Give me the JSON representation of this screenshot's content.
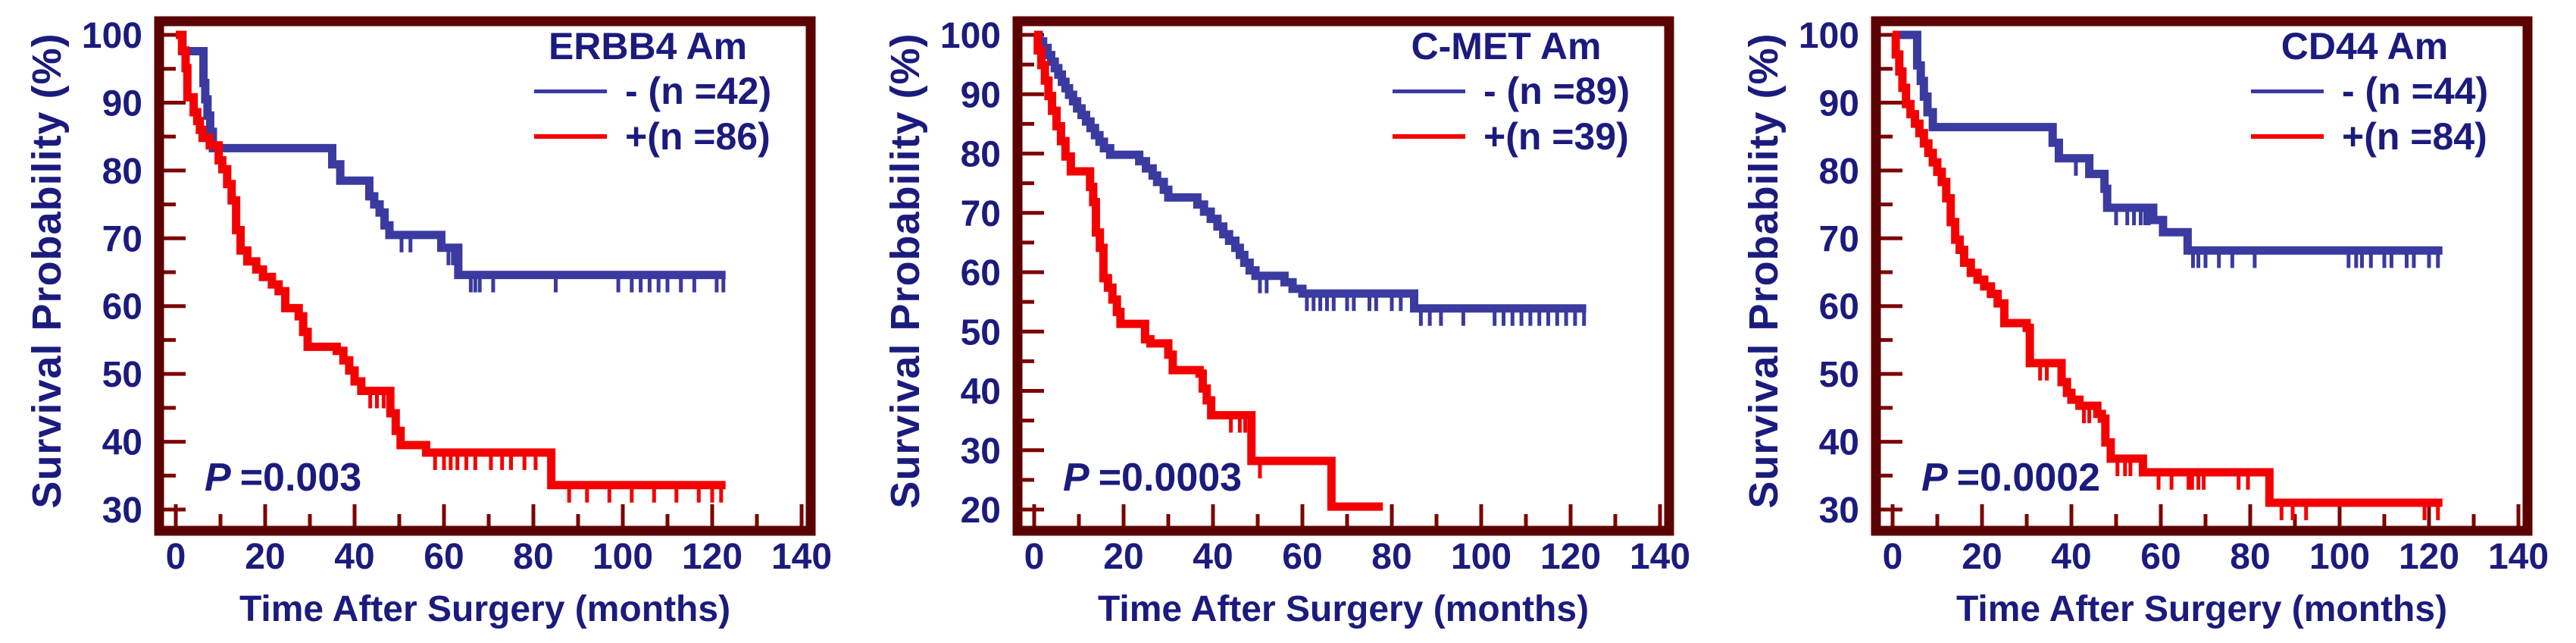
{
  "figure": {
    "x_label": "Time After Surgery (months)",
    "y_label": "Survival Probability (%)",
    "colors": {
      "negative_curve": "#3a3aa0",
      "positive_curve": "#f40000",
      "frame": "#5c0101",
      "tick": "#7d0404",
      "text": "#1b1b7e",
      "background": "#ffffff"
    }
  },
  "chart_data": [
    {
      "type": "line",
      "subtype": "kaplan-meier-step",
      "title": "ERBB4 Am",
      "p_symbol": "P",
      "p_value": "=0.003",
      "xlabel": "Time After Surgery (months)",
      "ylabel": "Survival Probability (%)",
      "xlim": [
        0,
        140
      ],
      "ylim": [
        30,
        100
      ],
      "x_ticks": [
        0,
        20,
        40,
        60,
        80,
        100,
        120,
        140
      ],
      "y_ticks": [
        30,
        40,
        50,
        60,
        70,
        80,
        90,
        100
      ],
      "legend_position": "top-right",
      "grid": false,
      "series": [
        {
          "name": "negative",
          "label": "- (n =42)",
          "color": "#3a3aa0",
          "steps": [
            [
              0,
              100
            ],
            [
              1.5,
              97.6
            ],
            [
              6.2,
              92.9
            ],
            [
              6.6,
              90.5
            ],
            [
              7.1,
              88.1
            ],
            [
              7.7,
              85.7
            ],
            [
              8.3,
              83.3
            ],
            [
              35,
              80.9
            ],
            [
              36.8,
              78.5
            ],
            [
              43.3,
              76.2
            ],
            [
              44.4,
              75
            ],
            [
              45.6,
              73.8
            ],
            [
              46.7,
              71.9
            ],
            [
              47.8,
              70.5
            ],
            [
              59.4,
              68.6
            ],
            [
              63.2,
              64.6
            ],
            [
              123,
              64.6
            ]
          ],
          "censor_times": [
            50.5,
            52.5,
            61,
            62,
            66,
            67,
            68,
            71,
            85,
            99,
            102,
            104,
            106,
            108,
            110,
            113,
            116,
            121,
            122.5
          ]
        },
        {
          "name": "positive",
          "label": "+(n =86)",
          "color": "#f40000",
          "steps": [
            [
              0,
              100
            ],
            [
              1.4,
              97.7
            ],
            [
              2.2,
              95.1
            ],
            [
              2.6,
              90.8
            ],
            [
              4,
              88.6
            ],
            [
              4.8,
              87.3
            ],
            [
              5.4,
              86
            ],
            [
              6,
              84.8
            ],
            [
              7.6,
              83.7
            ],
            [
              9.6,
              81.5
            ],
            [
              10.4,
              80.2
            ],
            [
              11.5,
              78
            ],
            [
              12.5,
              75.6
            ],
            [
              13.5,
              71.2
            ],
            [
              14.5,
              68.2
            ],
            [
              16,
              66.6
            ],
            [
              18,
              65.4
            ],
            [
              19.5,
              64.3
            ],
            [
              21.5,
              63.2
            ],
            [
              23,
              62.2
            ],
            [
              24.5,
              59.7
            ],
            [
              27.5,
              58.5
            ],
            [
              28.5,
              56.2
            ],
            [
              29.5,
              54
            ],
            [
              36,
              53.4
            ],
            [
              37.5,
              52
            ],
            [
              38.8,
              50.5
            ],
            [
              40,
              48.9
            ],
            [
              41.5,
              47.5
            ],
            [
              48,
              44.2
            ],
            [
              49.2,
              41.6
            ],
            [
              50.3,
              39.5
            ],
            [
              56,
              38.4
            ],
            [
              84,
              33.6
            ],
            [
              123,
              33.6
            ]
          ],
          "censor_times": [
            43.5,
            45,
            46.5,
            58,
            60,
            61.5,
            63,
            65,
            67,
            70.5,
            73,
            75,
            78,
            80.5,
            88,
            92,
            97,
            102,
            107,
            112,
            117,
            120,
            122
          ]
        }
      ]
    },
    {
      "type": "line",
      "subtype": "kaplan-meier-step",
      "title": "C-MET Am",
      "p_symbol": "P",
      "p_value": "=0.0003",
      "xlabel": "Time After Surgery (months)",
      "ylabel": "Survival Probability (%)",
      "xlim": [
        0,
        140
      ],
      "ylim": [
        20,
        100
      ],
      "x_ticks": [
        0,
        20,
        40,
        60,
        80,
        100,
        120,
        140
      ],
      "y_ticks": [
        20,
        30,
        40,
        50,
        60,
        70,
        80,
        90,
        100
      ],
      "legend_position": "top-right",
      "grid": false,
      "series": [
        {
          "name": "negative",
          "label": "- (n =89)",
          "color": "#3a3aa0",
          "steps": [
            [
              0,
              100
            ],
            [
              1,
              98.9
            ],
            [
              2,
              97.8
            ],
            [
              3,
              96.6
            ],
            [
              3.8,
              95.5
            ],
            [
              4.6,
              94.4
            ],
            [
              5.4,
              93.3
            ],
            [
              6.2,
              92.1
            ],
            [
              7,
              91
            ],
            [
              7.8,
              89.9
            ],
            [
              8.7,
              88.8
            ],
            [
              9.6,
              87.6
            ],
            [
              10.6,
              86.5
            ],
            [
              11.6,
              85.4
            ],
            [
              12.6,
              84.3
            ],
            [
              13.6,
              83.1
            ],
            [
              14.6,
              82
            ],
            [
              15.6,
              80.9
            ],
            [
              17,
              79.8
            ],
            [
              23.5,
              78.7
            ],
            [
              25,
              77.5
            ],
            [
              26.5,
              76.3
            ],
            [
              27.5,
              75.2
            ],
            [
              29,
              73.9
            ],
            [
              30,
              72.6
            ],
            [
              36.5,
              71.4
            ],
            [
              38,
              70.2
            ],
            [
              39.5,
              69
            ],
            [
              41,
              67.7
            ],
            [
              42.3,
              66.4
            ],
            [
              43.6,
              65.3
            ],
            [
              45,
              64.1
            ],
            [
              46,
              62.9
            ],
            [
              47,
              61.6
            ],
            [
              48.2,
              60.3
            ],
            [
              49.5,
              59.4
            ],
            [
              56,
              58.3
            ],
            [
              57.8,
              57.2
            ],
            [
              60,
              56.4
            ],
            [
              85,
              53.9
            ],
            [
              123.5,
              53.9
            ]
          ],
          "censor_times": [
            50.5,
            52,
            61,
            62.5,
            64,
            65.5,
            67,
            70,
            71.5,
            75,
            76.5,
            80,
            82,
            86.5,
            88.5,
            91,
            96,
            103,
            105,
            107,
            109,
            111,
            113,
            115,
            117,
            119,
            121,
            123
          ]
        },
        {
          "name": "positive",
          "label": "+(n =39)",
          "color": "#f40000",
          "steps": [
            [
              0,
              100
            ],
            [
              0.8,
              97.4
            ],
            [
              1.6,
              94.9
            ],
            [
              2.4,
              92.3
            ],
            [
              3.2,
              89.7
            ],
            [
              4,
              87.2
            ],
            [
              5,
              84.6
            ],
            [
              6,
              82.1
            ],
            [
              7,
              79.5
            ],
            [
              8.2,
              77
            ],
            [
              12.5,
              74.4
            ],
            [
              13.2,
              71.8
            ],
            [
              13.8,
              66.7
            ],
            [
              14.7,
              64.1
            ],
            [
              15.5,
              59
            ],
            [
              16.5,
              57.4
            ],
            [
              17.5,
              55.4
            ],
            [
              18.5,
              53.3
            ],
            [
              19.3,
              51.3
            ],
            [
              24.8,
              48.7
            ],
            [
              26,
              48
            ],
            [
              30,
              46.1
            ],
            [
              31,
              43.5
            ],
            [
              37,
              42.9
            ],
            [
              37.7,
              40.4
            ],
            [
              38.6,
              38.4
            ],
            [
              39.6,
              35.9
            ],
            [
              48.6,
              28.2
            ],
            [
              66.5,
              20.5
            ],
            [
              78,
              20.5
            ]
          ],
          "censor_times": [
            44,
            46,
            47.2,
            50.5
          ]
        }
      ]
    },
    {
      "type": "line",
      "subtype": "kaplan-meier-step",
      "title": "CD44 Am",
      "p_symbol": "P",
      "p_value": "=0.0002",
      "xlabel": "Time After Surgery (months)",
      "ylabel": "Survival Probability (%)",
      "xlim": [
        0,
        140
      ],
      "ylim": [
        30,
        100
      ],
      "x_ticks": [
        0,
        20,
        40,
        60,
        80,
        100,
        120,
        140
      ],
      "y_ticks": [
        30,
        40,
        50,
        60,
        70,
        80,
        90,
        100
      ],
      "legend_position": "top-right",
      "grid": false,
      "series": [
        {
          "name": "negative",
          "label": "- (n =44)",
          "color": "#3a3aa0",
          "steps": [
            [
              0,
              100
            ],
            [
              5.5,
              95.5
            ],
            [
              6.3,
              93.2
            ],
            [
              7,
              90.9
            ],
            [
              7.8,
              88.6
            ],
            [
              9,
              86.4
            ],
            [
              35.8,
              84.1
            ],
            [
              37.2,
              81.8
            ],
            [
              44,
              79.5
            ],
            [
              47.4,
              77.3
            ],
            [
              48,
              74.5
            ],
            [
              58.3,
              72.7
            ],
            [
              60.5,
              70.9
            ],
            [
              66,
              68.2
            ],
            [
              123,
              68.2
            ]
          ],
          "censor_times": [
            41,
            50,
            52.5,
            54,
            55.5,
            56.5,
            57.3,
            65.5,
            67.2,
            68.4,
            70,
            73,
            76,
            81,
            102,
            103.7,
            105,
            107,
            110,
            111.6,
            115,
            116.6,
            120,
            122
          ]
        },
        {
          "name": "positive",
          "label": "+(n =84)",
          "color": "#f40000",
          "steps": [
            [
              0,
              100
            ],
            [
              0.7,
              97.1
            ],
            [
              1.5,
              94.6
            ],
            [
              2.2,
              92.2
            ],
            [
              3,
              89.8
            ],
            [
              4,
              88.3
            ],
            [
              5,
              86.9
            ],
            [
              6,
              85.5
            ],
            [
              7,
              84
            ],
            [
              8,
              82.6
            ],
            [
              9,
              81.2
            ],
            [
              10,
              79.8
            ],
            [
              11,
              78.3
            ],
            [
              12,
              75.9
            ],
            [
              13,
              72.4
            ],
            [
              14,
              69.8
            ],
            [
              15,
              68.3
            ],
            [
              16,
              66.4
            ],
            [
              17.5,
              64.9
            ],
            [
              19,
              63.9
            ],
            [
              20.5,
              62.9
            ],
            [
              22,
              61.8
            ],
            [
              23.5,
              60.4
            ],
            [
              25,
              57.5
            ],
            [
              30,
              56.8
            ],
            [
              30.7,
              51.6
            ],
            [
              37.8,
              48.8
            ],
            [
              39,
              47.2
            ],
            [
              40,
              46.2
            ],
            [
              41.8,
              45.3
            ],
            [
              45.8,
              44.1
            ],
            [
              46.8,
              43.4
            ],
            [
              47.6,
              39.9
            ],
            [
              48.8,
              37.5
            ],
            [
              56,
              35.5
            ],
            [
              84.3,
              31
            ],
            [
              123,
              31
            ]
          ],
          "censor_times": [
            33,
            34.5,
            42.8,
            44,
            50.3,
            52,
            53.2,
            59.5,
            62.4,
            66.2,
            67,
            68.4,
            69.6,
            77.4,
            79.5,
            87,
            89.5,
            92.5,
            119,
            122
          ]
        }
      ]
    }
  ]
}
